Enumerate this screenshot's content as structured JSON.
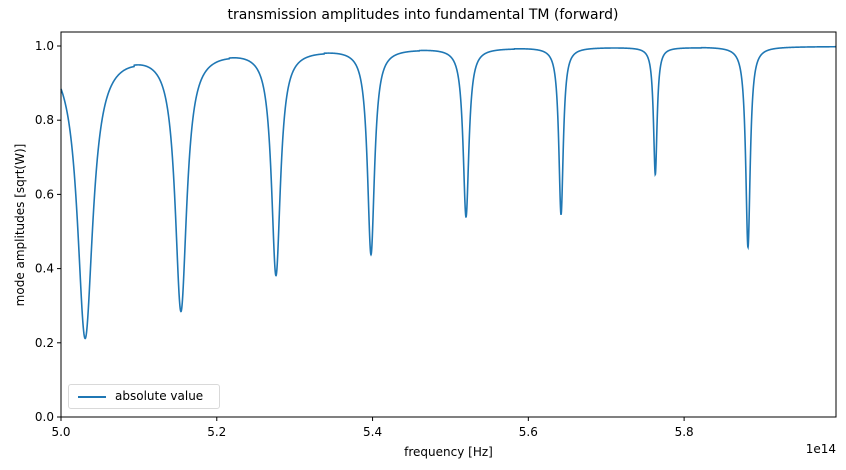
{
  "chart_data": {
    "type": "line",
    "title": "transmission amplitudes into fundamental TM (forward)",
    "xlabel": "frequency [Hz]",
    "ylabel": "mode amplitudes [sqrt(W)]",
    "x_offset_label": "1e14",
    "xlim": [
      5.0,
      5.995
    ],
    "ylim": [
      0.0,
      1.04
    ],
    "xticks": [
      "5.0",
      "5.2",
      "5.4",
      "5.6",
      "5.8"
    ],
    "yticks": [
      "0.0",
      "0.2",
      "0.4",
      "0.6",
      "0.8",
      "1.0"
    ],
    "grid": false,
    "legend_position": "lower left",
    "series": [
      {
        "name": "absolute value",
        "color": "#1f77b4",
        "start_value": 0.975,
        "dips": [
          {
            "x": 5.031,
            "min": 0.216,
            "baseline": 0.988,
            "width": 0.012
          },
          {
            "x": 5.154,
            "min": 0.294,
            "baseline": 0.992,
            "width": 0.009
          },
          {
            "x": 5.276,
            "min": 0.388,
            "baseline": 0.994,
            "width": 0.007
          },
          {
            "x": 5.398,
            "min": 0.442,
            "baseline": 0.996,
            "width": 0.0055
          },
          {
            "x": 5.52,
            "min": 0.542,
            "baseline": 0.997,
            "width": 0.0045
          },
          {
            "x": 5.642,
            "min": 0.547,
            "baseline": 0.998,
            "width": 0.0035
          },
          {
            "x": 5.763,
            "min": 0.655,
            "baseline": 0.998,
            "width": 0.0028
          },
          {
            "x": 5.882,
            "min": 0.458,
            "baseline": 0.999,
            "width": 0.0035
          }
        ]
      }
    ]
  },
  "legend": {
    "label": "absolute value"
  }
}
